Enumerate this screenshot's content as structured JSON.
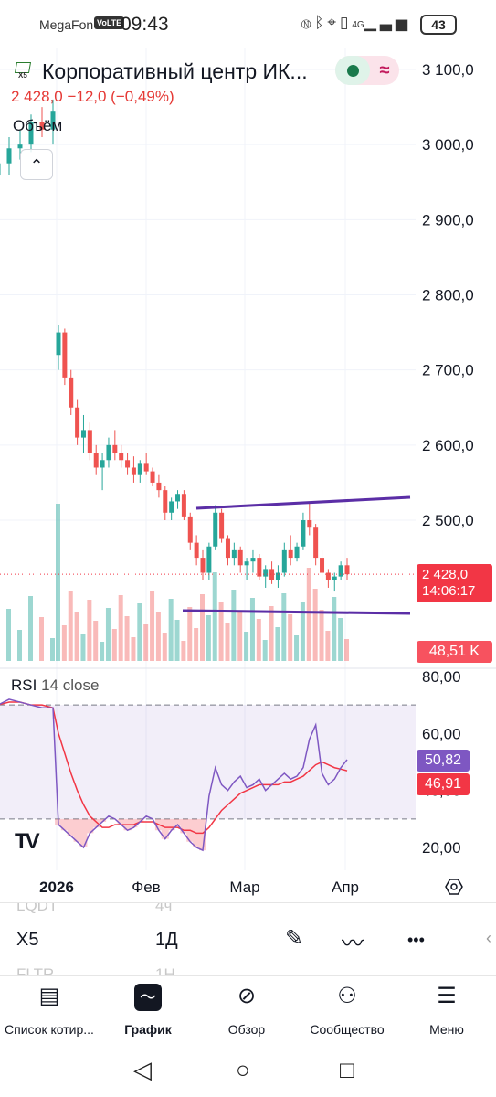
{
  "status_bar": {
    "carrier": "MegaFon",
    "volte": "VoLTE",
    "time": "09:43",
    "icons": [
      "nfc-icon",
      "bluetooth-icon",
      "location-icon",
      "vibrate-icon",
      "signal-icon"
    ],
    "network": "4G",
    "battery": "43"
  },
  "symbol": {
    "logo_text": "X5",
    "title": "Корпоративный центр ИК...",
    "quote": "2 428,0  −12,0 (−0,49%)",
    "volume_label": "Объём"
  },
  "price_axis": {
    "labels": [
      "3 100,0",
      "3 000,0",
      "2 900,0",
      "2 800,0",
      "2 700,0",
      "2 600,0",
      "2 500,0"
    ],
    "current_price": "2 428,0",
    "countdown": "14:06:17",
    "volume_value": "48,51 K"
  },
  "rsi": {
    "label": "RSI",
    "params": "14 close",
    "axis_labels": [
      "80,00",
      "60,00",
      "40,00",
      "20,00"
    ],
    "rsi_value": "50,82",
    "ma_value": "46,91"
  },
  "time_axis": {
    "labels": [
      "2026",
      "Фев",
      "Мар",
      "Апр"
    ]
  },
  "colors": {
    "up": "#26a69a",
    "down": "#ef5350",
    "rsi_line": "#7e57c2",
    "rsi_ma": "#f23645",
    "trendline": "#5b2ea6"
  },
  "toolbar": {
    "symbols": [
      "LQDT",
      "X5",
      "FLTR"
    ],
    "intervals": [
      "4ч",
      "1Д",
      "1Н"
    ],
    "tools": [
      "pencil-icon",
      "indicators-icon",
      "more-icon"
    ]
  },
  "bottom_nav": [
    {
      "label": "Список котир...",
      "icon": "watchlist-icon"
    },
    {
      "label": "График",
      "icon": "chart-icon"
    },
    {
      "label": "Обзор",
      "icon": "compass-icon"
    },
    {
      "label": "Сообщество",
      "icon": "community-icon"
    },
    {
      "label": "Меню",
      "icon": "menu-icon"
    }
  ],
  "chart_data": {
    "type": "candlestick",
    "symbol": "X5",
    "interval": "1D",
    "price_ylim": [
      2440,
      3100
    ],
    "candles_ohlc": [
      [
        2960,
        2990,
        2945,
        2975
      ],
      [
        2975,
        3010,
        2960,
        2995
      ],
      [
        2995,
        3020,
        2980,
        3000
      ],
      [
        3000,
        3040,
        2990,
        3030
      ],
      [
        3030,
        3050,
        3010,
        3020
      ],
      [
        3020,
        3060,
        3000,
        3045
      ],
      [
        2720,
        2760,
        2700,
        2750
      ],
      [
        2750,
        2755,
        2680,
        2690
      ],
      [
        2690,
        2700,
        2640,
        2650
      ],
      [
        2650,
        2660,
        2600,
        2610
      ],
      [
        2610,
        2640,
        2590,
        2620
      ],
      [
        2620,
        2630,
        2580,
        2590
      ],
      [
        2590,
        2600,
        2560,
        2570
      ],
      [
        2570,
        2590,
        2540,
        2580
      ],
      [
        2580,
        2610,
        2570,
        2600
      ],
      [
        2600,
        2620,
        2580,
        2590
      ],
      [
        2590,
        2600,
        2570,
        2580
      ],
      [
        2580,
        2590,
        2560,
        2570
      ],
      [
        2570,
        2585,
        2550,
        2560
      ],
      [
        2560,
        2580,
        2550,
        2575
      ],
      [
        2575,
        2590,
        2560,
        2565
      ],
      [
        2565,
        2570,
        2545,
        2550
      ],
      [
        2550,
        2560,
        2530,
        2540
      ],
      [
        2540,
        2545,
        2500,
        2510
      ],
      [
        2510,
        2530,
        2500,
        2525
      ],
      [
        2525,
        2540,
        2515,
        2535
      ],
      [
        2535,
        2540,
        2500,
        2505
      ],
      [
        2505,
        2510,
        2460,
        2470
      ],
      [
        2470,
        2480,
        2440,
        2450
      ],
      [
        2450,
        2460,
        2420,
        2430
      ],
      [
        2430,
        2470,
        2420,
        2465
      ],
      [
        2465,
        2520,
        2460,
        2510
      ],
      [
        2510,
        2515,
        2470,
        2475
      ],
      [
        2475,
        2480,
        2440,
        2450
      ],
      [
        2450,
        2470,
        2440,
        2460
      ],
      [
        2460,
        2465,
        2430,
        2440
      ],
      [
        2440,
        2450,
        2420,
        2445
      ],
      [
        2445,
        2460,
        2430,
        2450
      ],
      [
        2450,
        2455,
        2420,
        2425
      ],
      [
        2425,
        2440,
        2410,
        2435
      ],
      [
        2435,
        2445,
        2415,
        2420
      ],
      [
        2420,
        2440,
        2410,
        2430
      ],
      [
        2430,
        2470,
        2425,
        2460
      ],
      [
        2460,
        2480,
        2440,
        2450
      ],
      [
        2450,
        2470,
        2445,
        2465
      ],
      [
        2465,
        2510,
        2460,
        2500
      ],
      [
        2500,
        2525,
        2480,
        2490
      ],
      [
        2490,
        2495,
        2440,
        2450
      ],
      [
        2450,
        2460,
        2420,
        2430
      ],
      [
        2430,
        2435,
        2410,
        2420
      ],
      [
        2420,
        2430,
        2405,
        2425
      ],
      [
        2425,
        2445,
        2420,
        2440
      ],
      [
        2440,
        2450,
        2420,
        2428
      ]
    ],
    "rsi_ylim": [
      13,
      82
    ],
    "rsi_bands": [
      70,
      30
    ],
    "rsi_values": [
      70,
      72,
      71,
      70,
      69,
      69,
      28,
      26,
      24,
      22,
      20,
      25,
      27,
      29,
      31,
      30,
      28,
      26,
      27,
      29,
      31,
      30,
      26,
      23,
      26,
      28,
      25,
      22,
      20,
      19,
      38,
      48,
      42,
      40,
      43,
      45,
      41,
      42,
      44,
      40,
      42,
      44,
      46,
      44,
      45,
      48,
      58,
      63,
      46,
      42,
      44,
      48,
      50.82
    ],
    "rsi_ma_values": [
      70,
      71,
      71,
      70,
      70,
      69,
      60,
      53,
      46,
      40,
      35,
      31,
      29,
      27,
      27,
      28,
      28,
      28,
      28,
      29,
      29,
      29,
      28,
      27,
      27,
      27,
      26,
      26,
      25,
      25,
      27,
      30,
      33,
      35,
      37,
      39,
      40,
      41,
      42,
      42,
      42,
      42,
      43,
      43,
      44,
      45,
      47,
      49,
      50,
      49,
      48,
      47.5,
      46.91
    ]
  }
}
